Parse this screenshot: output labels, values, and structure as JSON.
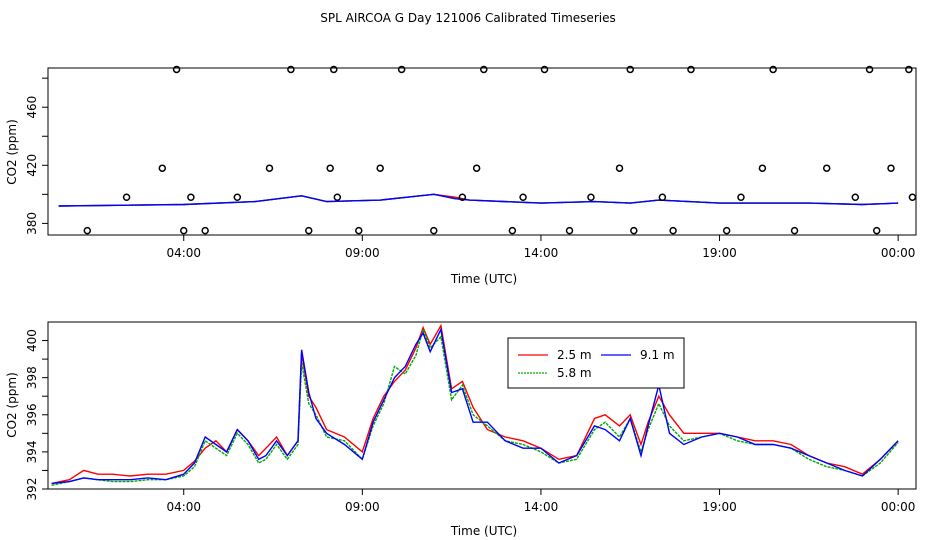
{
  "title": "SPL AIRCOA G  Day 121006  Calibrated Timeseries",
  "chart_data": [
    {
      "type": "scatter+line",
      "xlabel": "Time (UTC)",
      "ylabel": "CO2 (ppm)",
      "xlim": [
        0.2,
        24.5
      ],
      "ylim": [
        372,
        487
      ],
      "xticks": [
        4,
        9,
        14,
        19,
        24
      ],
      "xtick_labels": [
        "04:00",
        "09:00",
        "14:00",
        "19:00",
        "00:00"
      ],
      "yticks": [
        380,
        420,
        460
      ],
      "yticks_minor": [
        400,
        440,
        480
      ],
      "points": {
        "x": [
          1.3,
          2.4,
          3.4,
          3.8,
          4.0,
          4.2,
          4.6,
          5.5,
          6.4,
          7.0,
          7.5,
          8.1,
          8.2,
          8.3,
          8.9,
          9.5,
          10.1,
          11.0,
          11.8,
          12.2,
          12.4,
          13.2,
          13.5,
          14.1,
          14.8,
          15.4,
          16.2,
          16.5,
          16.6,
          17.4,
          17.7,
          18.2,
          19.2,
          19.6,
          20.2,
          20.5,
          21.1,
          22.0,
          22.8,
          23.2,
          23.4,
          23.8,
          24.3,
          24.4
        ],
        "y": [
          375,
          398,
          418,
          486,
          375,
          398,
          375,
          398,
          418,
          486,
          375,
          418,
          486,
          398,
          375,
          418,
          486,
          375,
          398,
          418,
          486,
          375,
          398,
          486,
          375,
          398,
          418,
          486,
          375,
          398,
          375,
          486,
          375,
          398,
          418,
          486,
          375,
          418,
          398,
          486,
          375,
          418,
          486,
          398
        ]
      },
      "series": [
        {
          "name": "2.5 m",
          "color": "#ff0000",
          "x": [
            0.5,
            4,
            6,
            7.3,
            8,
            9.5,
            11,
            11.6,
            12,
            14,
            15.5,
            16.5,
            17.3,
            19,
            21.5,
            23,
            24
          ],
          "y": [
            392,
            393,
            395,
            399,
            395,
            396,
            400,
            398,
            396,
            394,
            395,
            394,
            396,
            394,
            394,
            393,
            394
          ]
        },
        {
          "name": "5.8 m",
          "color": "#00aa00",
          "x": [
            0.5,
            4,
            6,
            7.3,
            8,
            9.5,
            11,
            11.6,
            12,
            14,
            15.5,
            16.5,
            17.3,
            19,
            21.5,
            23,
            24
          ],
          "y": [
            392,
            393,
            395,
            399,
            395,
            396,
            400,
            397,
            396,
            394,
            395,
            394,
            396,
            394,
            394,
            393,
            394
          ]
        },
        {
          "name": "9.1 m",
          "color": "#0000ff",
          "x": [
            0.5,
            4,
            6,
            7.3,
            8,
            9.5,
            11,
            11.6,
            12,
            14,
            15.5,
            16.5,
            17.3,
            19,
            21.5,
            23,
            24
          ],
          "y": [
            392,
            393,
            395,
            399,
            395,
            396,
            400,
            397,
            396,
            394,
            395,
            394,
            396,
            394,
            394,
            393,
            394
          ]
        }
      ]
    },
    {
      "type": "line",
      "xlabel": "Time (UTC)",
      "ylabel": "CO2 (ppm)",
      "xlim": [
        0.2,
        24.5
      ],
      "ylim": [
        392,
        401
      ],
      "xticks": [
        4,
        9,
        14,
        19,
        24
      ],
      "xtick_labels": [
        "04:00",
        "09:00",
        "14:00",
        "19:00",
        "00:00"
      ],
      "yticks": [
        392,
        394,
        396,
        398,
        400
      ],
      "yticks_minor": [
        393,
        395,
        397,
        399
      ],
      "legend": "top-center",
      "legend_entries": [
        "2.5 m",
        "9.1 m",
        "5.8 m"
      ],
      "series": [
        {
          "name": "2.5 m",
          "color": "#ff0000",
          "x": [
            0.3,
            0.8,
            1.2,
            1.6,
            2.0,
            2.5,
            3.0,
            3.5,
            4.0,
            4.3,
            4.6,
            4.9,
            5.2,
            5.5,
            5.8,
            6.1,
            6.3,
            6.6,
            6.9,
            7.2,
            7.3,
            7.5,
            7.7,
            8.0,
            8.5,
            9.0,
            9.3,
            9.6,
            9.9,
            10.2,
            10.5,
            10.7,
            10.9,
            11.2,
            11.5,
            11.8,
            12.1,
            12.5,
            13.0,
            13.5,
            14.0,
            14.5,
            15.0,
            15.5,
            15.8,
            16.2,
            16.5,
            16.8,
            17.0,
            17.3,
            17.6,
            18.0,
            18.5,
            19.0,
            19.5,
            20.0,
            20.5,
            21.0,
            21.5,
            22.0,
            22.5,
            23.0,
            23.5,
            24.0
          ],
          "y": [
            392.3,
            392.5,
            393.0,
            392.8,
            392.8,
            392.7,
            392.8,
            392.8,
            393.0,
            393.5,
            394.2,
            394.6,
            394.0,
            395.2,
            394.6,
            393.8,
            394.2,
            394.8,
            393.8,
            394.6,
            399.3,
            397.0,
            396.4,
            395.2,
            394.8,
            394.0,
            395.8,
            397.0,
            397.8,
            398.4,
            399.6,
            400.7,
            399.8,
            400.8,
            397.4,
            397.8,
            396.4,
            395.2,
            394.8,
            394.6,
            394.2,
            393.6,
            393.8,
            395.8,
            396.0,
            395.4,
            396.0,
            394.4,
            395.6,
            397.0,
            396.0,
            395.0,
            395.0,
            395.0,
            394.8,
            394.6,
            394.6,
            394.4,
            393.8,
            393.4,
            393.2,
            392.8,
            393.6,
            394.6
          ]
        },
        {
          "name": "5.8 m",
          "color": "#00aa00",
          "x": [
            0.3,
            0.8,
            1.2,
            1.6,
            2.0,
            2.5,
            3.0,
            3.5,
            4.0,
            4.3,
            4.6,
            4.9,
            5.2,
            5.5,
            5.8,
            6.1,
            6.3,
            6.6,
            6.9,
            7.2,
            7.3,
            7.5,
            7.7,
            8.0,
            8.5,
            9.0,
            9.3,
            9.6,
            9.9,
            10.2,
            10.5,
            10.7,
            10.9,
            11.2,
            11.5,
            11.8,
            12.1,
            12.5,
            13.0,
            13.5,
            14.0,
            14.5,
            15.0,
            15.5,
            15.8,
            16.2,
            16.5,
            16.8,
            17.0,
            17.3,
            17.6,
            18.0,
            18.5,
            19.0,
            19.5,
            20.0,
            20.5,
            21.0,
            21.5,
            22.0,
            22.5,
            23.0,
            23.5,
            24.0
          ],
          "y": [
            392.2,
            392.4,
            392.6,
            392.5,
            392.4,
            392.4,
            392.5,
            392.5,
            392.7,
            393.2,
            394.6,
            394.2,
            393.8,
            395.0,
            394.4,
            393.4,
            393.6,
            394.4,
            393.6,
            394.4,
            398.8,
            396.6,
            396.0,
            394.8,
            394.6,
            393.6,
            395.4,
            396.6,
            398.6,
            398.2,
            399.2,
            400.6,
            399.6,
            400.2,
            396.8,
            397.6,
            396.0,
            395.4,
            394.6,
            394.4,
            394.0,
            393.4,
            393.6,
            395.2,
            395.6,
            394.8,
            395.8,
            394.0,
            395.2,
            396.6,
            395.4,
            394.6,
            394.8,
            395.0,
            394.6,
            394.4,
            394.4,
            394.2,
            393.6,
            393.2,
            393.0,
            392.7,
            393.4,
            394.5
          ]
        },
        {
          "name": "9.1 m",
          "color": "#0000ff",
          "x": [
            0.3,
            0.8,
            1.2,
            1.6,
            2.0,
            2.5,
            3.0,
            3.5,
            4.0,
            4.3,
            4.6,
            4.9,
            5.2,
            5.5,
            5.8,
            6.1,
            6.3,
            6.6,
            6.9,
            7.2,
            7.3,
            7.5,
            7.7,
            8.0,
            8.5,
            9.0,
            9.3,
            9.6,
            9.9,
            10.2,
            10.5,
            10.7,
            10.9,
            11.2,
            11.5,
            11.8,
            12.1,
            12.5,
            13.0,
            13.5,
            14.0,
            14.5,
            15.0,
            15.5,
            15.8,
            16.2,
            16.5,
            16.8,
            17.0,
            17.3,
            17.6,
            18.0,
            18.5,
            19.0,
            19.5,
            20.0,
            20.5,
            21.0,
            21.5,
            22.0,
            22.5,
            23.0,
            23.5,
            24.0
          ],
          "y": [
            392.3,
            392.4,
            392.6,
            392.5,
            392.5,
            392.5,
            392.6,
            392.5,
            392.8,
            393.4,
            394.8,
            394.4,
            394.0,
            395.2,
            394.6,
            393.6,
            393.8,
            394.6,
            393.8,
            394.6,
            399.5,
            397.2,
            395.8,
            395.0,
            394.4,
            393.6,
            395.6,
            396.8,
            398.0,
            398.6,
            399.8,
            400.4,
            399.4,
            400.6,
            397.2,
            397.4,
            395.6,
            395.6,
            394.6,
            394.2,
            394.2,
            393.4,
            393.8,
            395.4,
            395.2,
            394.6,
            395.8,
            393.8,
            395.4,
            397.6,
            395.0,
            394.4,
            394.8,
            395.0,
            394.8,
            394.4,
            394.4,
            394.2,
            393.8,
            393.4,
            393.0,
            392.7,
            393.6,
            394.6
          ]
        }
      ]
    }
  ]
}
